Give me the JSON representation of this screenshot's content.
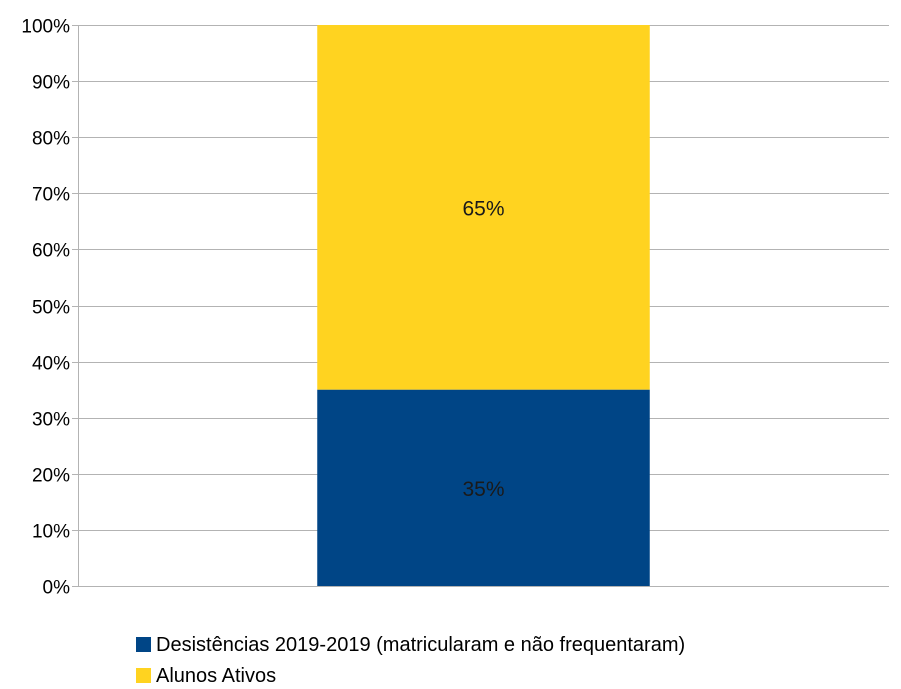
{
  "chart_data": {
    "type": "bar",
    "stacked": true,
    "percent_stacked": true,
    "categories": [
      ""
    ],
    "series": [
      {
        "name": "Desistências 2019-2019 (matricularam e não frequentaram)",
        "values": [
          35
        ],
        "color": "#004586",
        "data_label": "35%"
      },
      {
        "name": "Alunos Ativos",
        "values": [
          65
        ],
        "color": "#FFD320",
        "data_label": "65%"
      }
    ],
    "ylim": [
      0,
      100
    ],
    "yticks": [
      0,
      10,
      20,
      30,
      40,
      50,
      60,
      70,
      80,
      90,
      100
    ],
    "ytick_labels": [
      "0%",
      "10%",
      "20%",
      "30%",
      "40%",
      "50%",
      "60%",
      "70%",
      "80%",
      "90%",
      "100%"
    ],
    "title": "",
    "xlabel": "",
    "ylabel": "",
    "grid": true,
    "legend_position": "bottom",
    "colors": {
      "grid": "#b3b3b3",
      "axis": "#b3b3b3"
    }
  }
}
